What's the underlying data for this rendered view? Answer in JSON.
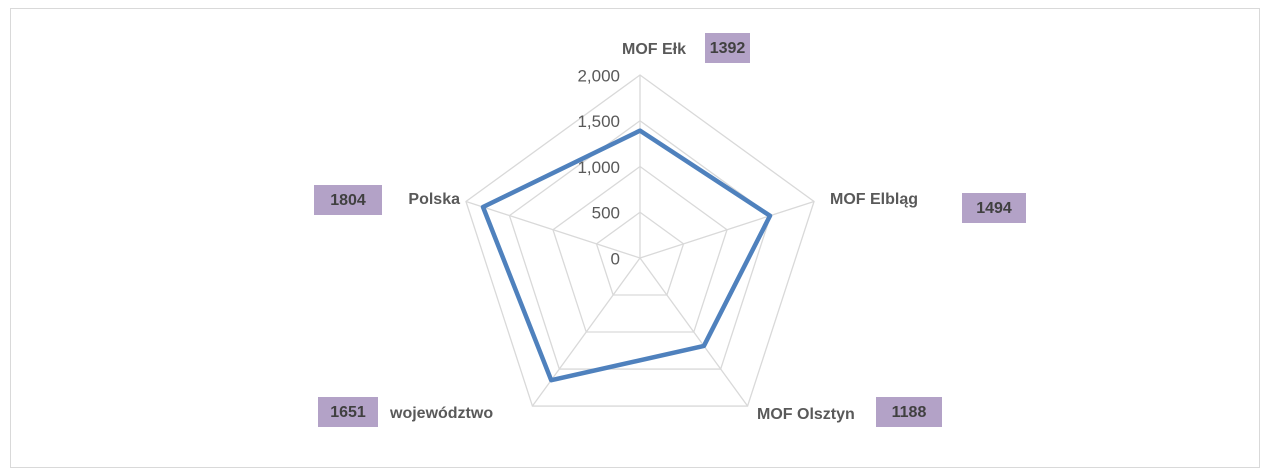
{
  "chart_data": {
    "type": "radar",
    "categories": [
      "MOF Ełk",
      "MOF Elbląg",
      "MOF Olsztyn",
      "województwo",
      "Polska"
    ],
    "series": [
      {
        "name": null,
        "color": "#4f81bd",
        "values": [
          1392,
          1494,
          1188,
          1651,
          1804
        ]
      }
    ],
    "ylim": [
      0,
      2000
    ],
    "yticks": [
      0,
      500,
      {
        "value": 1000,
        "label": "1,000"
      },
      {
        "value": 1500,
        "label": "1,500"
      },
      {
        "value": 2000,
        "label": "2,000"
      }
    ],
    "grid": true,
    "label_color": "#b3a2c7"
  }
}
